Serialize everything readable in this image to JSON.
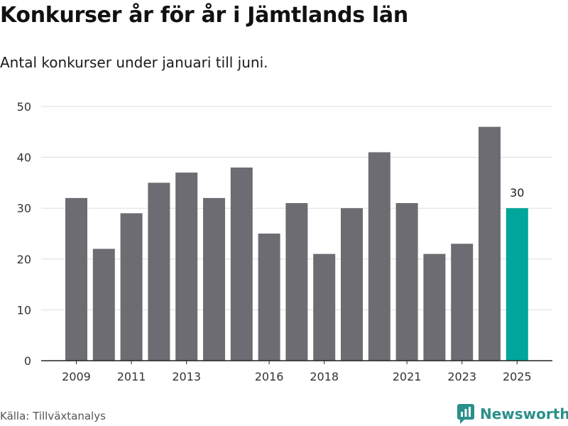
{
  "title": "Konkurser år för år i Jämtlands län",
  "subtitle": "Antal konkurser under januari till juni.",
  "source": "Källa: Tillväxtanalys",
  "brand": {
    "name": "Newsworthy",
    "color": "#2b8f8a",
    "icon": "newsworthy-chart-logo-icon"
  },
  "colors": {
    "bar": "#6d6c72",
    "highlight": "#00a59b",
    "grid": "#dddddd",
    "axis": "#222222",
    "tick_text": "#333333"
  },
  "chart_data": {
    "type": "bar",
    "categories": [
      "2009",
      "2010",
      "2011",
      "2012",
      "2013",
      "2014",
      "2015",
      "2016",
      "2017",
      "2018",
      "2019",
      "2020",
      "2021",
      "2022",
      "2023",
      "2024",
      "2025"
    ],
    "values": [
      32,
      22,
      29,
      35,
      37,
      32,
      38,
      25,
      31,
      21,
      30,
      41,
      31,
      21,
      23,
      46,
      30
    ],
    "highlight_index": 16,
    "data_labels": [
      {
        "category": "2025",
        "text": "30"
      }
    ],
    "x_tick_labels": [
      "2009",
      "2011",
      "2013",
      "2016",
      "2018",
      "2021",
      "2023",
      "2025"
    ],
    "y_ticks": [
      0,
      10,
      20,
      30,
      40,
      50
    ],
    "ylim": [
      0,
      50
    ],
    "xlabel": "",
    "ylabel": "",
    "grid": true,
    "legend": "none"
  }
}
